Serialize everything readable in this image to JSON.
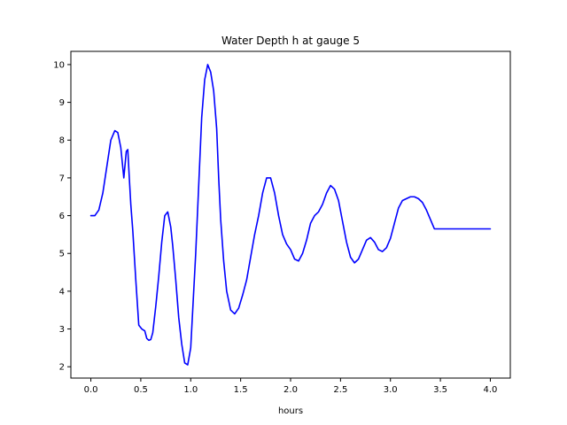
{
  "chart_data": {
    "type": "line",
    "title": "Water Depth h at gauge 5",
    "xlabel": "hours",
    "ylabel": "",
    "xlim": [
      -0.2,
      4.2
    ],
    "ylim": [
      1.7,
      10.35
    ],
    "grid": false,
    "x_ticks": [
      0.0,
      0.5,
      1.0,
      1.5,
      2.0,
      2.5,
      3.0,
      3.5,
      4.0
    ],
    "x_tick_labels": [
      "0.0",
      "0.5",
      "1.0",
      "1.5",
      "2.0",
      "2.5",
      "3.0",
      "3.5",
      "4.0"
    ],
    "y_ticks": [
      2,
      3,
      4,
      5,
      6,
      7,
      8,
      9,
      10
    ],
    "y_tick_labels": [
      "2",
      "3",
      "4",
      "5",
      "6",
      "7",
      "8",
      "9",
      "10"
    ],
    "series": [
      {
        "name": "",
        "color": "#0000ff",
        "x": [
          0.0,
          0.04,
          0.08,
          0.12,
          0.16,
          0.2,
          0.24,
          0.27,
          0.3,
          0.33,
          0.355,
          0.37,
          0.385,
          0.4,
          0.42,
          0.45,
          0.48,
          0.51,
          0.54,
          0.56,
          0.58,
          0.6,
          0.62,
          0.65,
          0.68,
          0.71,
          0.74,
          0.77,
          0.8,
          0.82,
          0.85,
          0.88,
          0.91,
          0.94,
          0.97,
          1.0,
          1.02,
          1.05,
          1.08,
          1.11,
          1.14,
          1.17,
          1.2,
          1.23,
          1.26,
          1.28,
          1.3,
          1.33,
          1.36,
          1.4,
          1.44,
          1.48,
          1.52,
          1.56,
          1.6,
          1.64,
          1.68,
          1.72,
          1.76,
          1.8,
          1.84,
          1.88,
          1.92,
          1.96,
          2.0,
          2.04,
          2.08,
          2.12,
          2.16,
          2.2,
          2.24,
          2.28,
          2.32,
          2.36,
          2.4,
          2.44,
          2.48,
          2.52,
          2.56,
          2.6,
          2.64,
          2.68,
          2.72,
          2.76,
          2.8,
          2.84,
          2.88,
          2.92,
          2.96,
          3.0,
          3.04,
          3.08,
          3.12,
          3.16,
          3.2,
          3.24,
          3.28,
          3.32,
          3.36,
          3.4,
          3.44,
          3.48,
          3.52,
          3.56,
          3.6,
          3.64,
          3.68,
          3.72,
          3.76,
          3.8,
          3.84,
          3.88,
          3.92,
          3.96,
          4.0
        ],
        "y": [
          6.0,
          6.0,
          6.15,
          6.6,
          7.3,
          8.0,
          8.25,
          8.2,
          7.8,
          7.0,
          7.7,
          7.75,
          7.0,
          6.3,
          5.6,
          4.3,
          3.1,
          3.0,
          2.95,
          2.75,
          2.7,
          2.72,
          2.9,
          3.6,
          4.4,
          5.3,
          6.0,
          6.1,
          5.7,
          5.2,
          4.3,
          3.3,
          2.6,
          2.1,
          2.05,
          2.5,
          3.5,
          5.0,
          6.8,
          8.6,
          9.6,
          10.0,
          9.8,
          9.3,
          8.3,
          7.0,
          5.9,
          4.8,
          4.0,
          3.5,
          3.4,
          3.55,
          3.9,
          4.3,
          4.9,
          5.5,
          6.0,
          6.6,
          7.0,
          7.0,
          6.6,
          6.0,
          5.5,
          5.25,
          5.1,
          4.85,
          4.8,
          5.0,
          5.35,
          5.8,
          6.0,
          6.1,
          6.3,
          6.6,
          6.8,
          6.7,
          6.4,
          5.85,
          5.3,
          4.9,
          4.75,
          4.85,
          5.1,
          5.35,
          5.42,
          5.3,
          5.1,
          5.05,
          5.15,
          5.4,
          5.8,
          6.2,
          6.4,
          6.45,
          6.5,
          6.5,
          6.45,
          6.35,
          6.15,
          5.9,
          5.65,
          5.65,
          5.65,
          5.65,
          5.65,
          5.65,
          5.65,
          5.65,
          5.65,
          5.65,
          5.65,
          5.65,
          5.65,
          5.65,
          5.65
        ]
      }
    ]
  }
}
